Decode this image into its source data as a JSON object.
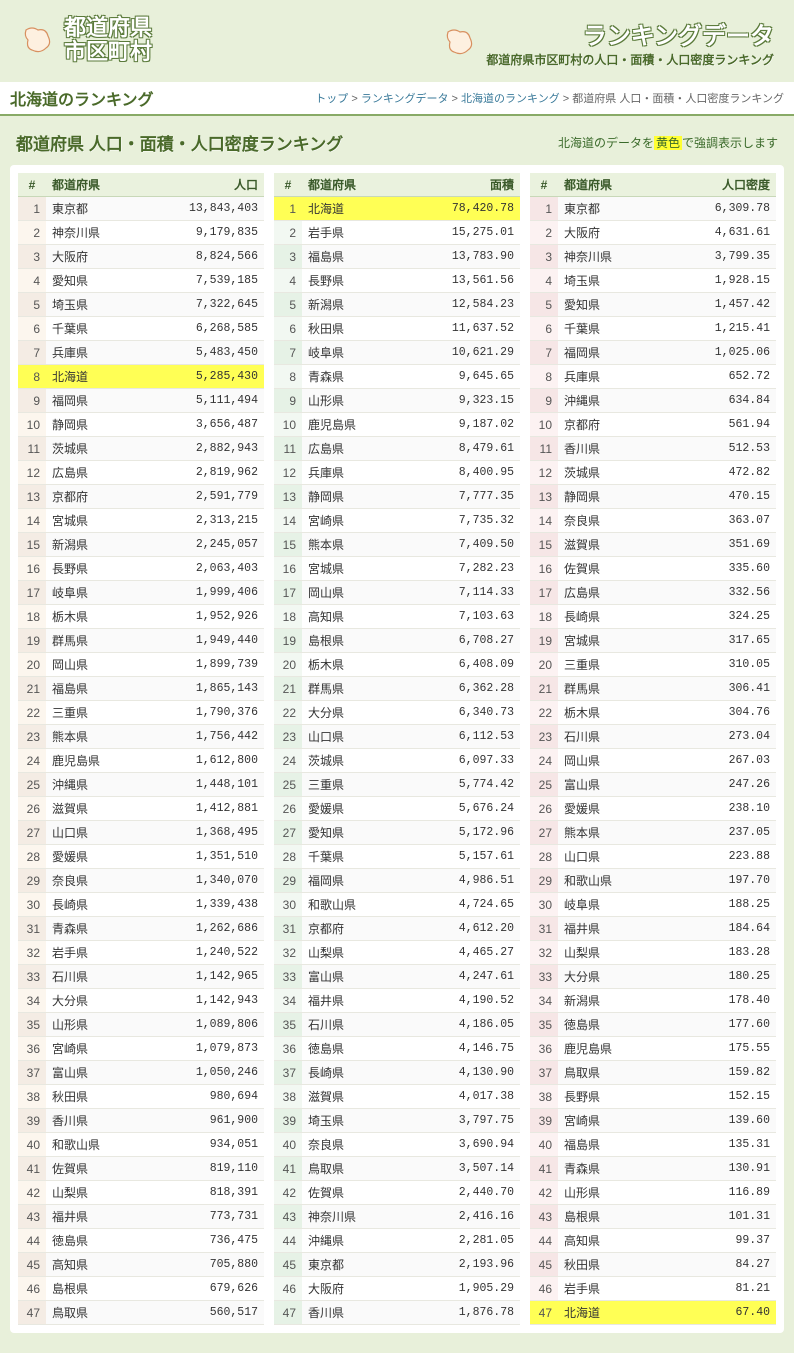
{
  "header": {
    "logo_line1": "都道府県",
    "logo_line2": "市区町村",
    "ranking_title": "ランキングデータ",
    "ranking_sub": "都道府県市区町村の人口・面積・人口密度ランキング"
  },
  "subhead": "北海道のランキング",
  "breadcrumb": {
    "items": [
      "トップ",
      "ランキングデータ",
      "北海道のランキング",
      "都道府県 人口・面積・人口密度ランキング"
    ],
    "sep": " > "
  },
  "page_title": "都道府県 人口・面積・人口密度ランキング",
  "highlight_note_pre": "北海道のデータを",
  "highlight_note_hl": "黄色",
  "highlight_note_post": "で強調表示します",
  "highlight_pref": "北海道",
  "colors": {
    "page_bg": "#e8f0da",
    "accent": "#4a6a2a",
    "highlight": "#ffff55"
  },
  "columns": [
    {
      "rank_h": "#",
      "pref_h": "都道府県",
      "val_h": "人口",
      "class": "c1",
      "rows": [
        {
          "r": 1,
          "p": "東京都",
          "v": "13,843,403"
        },
        {
          "r": 2,
          "p": "神奈川県",
          "v": "9,179,835"
        },
        {
          "r": 3,
          "p": "大阪府",
          "v": "8,824,566"
        },
        {
          "r": 4,
          "p": "愛知県",
          "v": "7,539,185"
        },
        {
          "r": 5,
          "p": "埼玉県",
          "v": "7,322,645"
        },
        {
          "r": 6,
          "p": "千葉県",
          "v": "6,268,585"
        },
        {
          "r": 7,
          "p": "兵庫県",
          "v": "5,483,450"
        },
        {
          "r": 8,
          "p": "北海道",
          "v": "5,285,430"
        },
        {
          "r": 9,
          "p": "福岡県",
          "v": "5,111,494"
        },
        {
          "r": 10,
          "p": "静岡県",
          "v": "3,656,487"
        },
        {
          "r": 11,
          "p": "茨城県",
          "v": "2,882,943"
        },
        {
          "r": 12,
          "p": "広島県",
          "v": "2,819,962"
        },
        {
          "r": 13,
          "p": "京都府",
          "v": "2,591,779"
        },
        {
          "r": 14,
          "p": "宮城県",
          "v": "2,313,215"
        },
        {
          "r": 15,
          "p": "新潟県",
          "v": "2,245,057"
        },
        {
          "r": 16,
          "p": "長野県",
          "v": "2,063,403"
        },
        {
          "r": 17,
          "p": "岐阜県",
          "v": "1,999,406"
        },
        {
          "r": 18,
          "p": "栃木県",
          "v": "1,952,926"
        },
        {
          "r": 19,
          "p": "群馬県",
          "v": "1,949,440"
        },
        {
          "r": 20,
          "p": "岡山県",
          "v": "1,899,739"
        },
        {
          "r": 21,
          "p": "福島県",
          "v": "1,865,143"
        },
        {
          "r": 22,
          "p": "三重県",
          "v": "1,790,376"
        },
        {
          "r": 23,
          "p": "熊本県",
          "v": "1,756,442"
        },
        {
          "r": 24,
          "p": "鹿児島県",
          "v": "1,612,800"
        },
        {
          "r": 25,
          "p": "沖縄県",
          "v": "1,448,101"
        },
        {
          "r": 26,
          "p": "滋賀県",
          "v": "1,412,881"
        },
        {
          "r": 27,
          "p": "山口県",
          "v": "1,368,495"
        },
        {
          "r": 28,
          "p": "愛媛県",
          "v": "1,351,510"
        },
        {
          "r": 29,
          "p": "奈良県",
          "v": "1,340,070"
        },
        {
          "r": 30,
          "p": "長崎県",
          "v": "1,339,438"
        },
        {
          "r": 31,
          "p": "青森県",
          "v": "1,262,686"
        },
        {
          "r": 32,
          "p": "岩手県",
          "v": "1,240,522"
        },
        {
          "r": 33,
          "p": "石川県",
          "v": "1,142,965"
        },
        {
          "r": 34,
          "p": "大分県",
          "v": "1,142,943"
        },
        {
          "r": 35,
          "p": "山形県",
          "v": "1,089,806"
        },
        {
          "r": 36,
          "p": "宮崎県",
          "v": "1,079,873"
        },
        {
          "r": 37,
          "p": "富山県",
          "v": "1,050,246"
        },
        {
          "r": 38,
          "p": "秋田県",
          "v": "980,694"
        },
        {
          "r": 39,
          "p": "香川県",
          "v": "961,900"
        },
        {
          "r": 40,
          "p": "和歌山県",
          "v": "934,051"
        },
        {
          "r": 41,
          "p": "佐賀県",
          "v": "819,110"
        },
        {
          "r": 42,
          "p": "山梨県",
          "v": "818,391"
        },
        {
          "r": 43,
          "p": "福井県",
          "v": "773,731"
        },
        {
          "r": 44,
          "p": "徳島県",
          "v": "736,475"
        },
        {
          "r": 45,
          "p": "高知県",
          "v": "705,880"
        },
        {
          "r": 46,
          "p": "島根県",
          "v": "679,626"
        },
        {
          "r": 47,
          "p": "鳥取県",
          "v": "560,517"
        }
      ]
    },
    {
      "rank_h": "#",
      "pref_h": "都道府県",
      "val_h": "面積",
      "class": "c2",
      "rows": [
        {
          "r": 1,
          "p": "北海道",
          "v": "78,420.78"
        },
        {
          "r": 2,
          "p": "岩手県",
          "v": "15,275.01"
        },
        {
          "r": 3,
          "p": "福島県",
          "v": "13,783.90"
        },
        {
          "r": 4,
          "p": "長野県",
          "v": "13,561.56"
        },
        {
          "r": 5,
          "p": "新潟県",
          "v": "12,584.23"
        },
        {
          "r": 6,
          "p": "秋田県",
          "v": "11,637.52"
        },
        {
          "r": 7,
          "p": "岐阜県",
          "v": "10,621.29"
        },
        {
          "r": 8,
          "p": "青森県",
          "v": "9,645.65"
        },
        {
          "r": 9,
          "p": "山形県",
          "v": "9,323.15"
        },
        {
          "r": 10,
          "p": "鹿児島県",
          "v": "9,187.02"
        },
        {
          "r": 11,
          "p": "広島県",
          "v": "8,479.61"
        },
        {
          "r": 12,
          "p": "兵庫県",
          "v": "8,400.95"
        },
        {
          "r": 13,
          "p": "静岡県",
          "v": "7,777.35"
        },
        {
          "r": 14,
          "p": "宮崎県",
          "v": "7,735.32"
        },
        {
          "r": 15,
          "p": "熊本県",
          "v": "7,409.50"
        },
        {
          "r": 16,
          "p": "宮城県",
          "v": "7,282.23"
        },
        {
          "r": 17,
          "p": "岡山県",
          "v": "7,114.33"
        },
        {
          "r": 18,
          "p": "高知県",
          "v": "7,103.63"
        },
        {
          "r": 19,
          "p": "島根県",
          "v": "6,708.27"
        },
        {
          "r": 20,
          "p": "栃木県",
          "v": "6,408.09"
        },
        {
          "r": 21,
          "p": "群馬県",
          "v": "6,362.28"
        },
        {
          "r": 22,
          "p": "大分県",
          "v": "6,340.73"
        },
        {
          "r": 23,
          "p": "山口県",
          "v": "6,112.53"
        },
        {
          "r": 24,
          "p": "茨城県",
          "v": "6,097.33"
        },
        {
          "r": 25,
          "p": "三重県",
          "v": "5,774.42"
        },
        {
          "r": 26,
          "p": "愛媛県",
          "v": "5,676.24"
        },
        {
          "r": 27,
          "p": "愛知県",
          "v": "5,172.96"
        },
        {
          "r": 28,
          "p": "千葉県",
          "v": "5,157.61"
        },
        {
          "r": 29,
          "p": "福岡県",
          "v": "4,986.51"
        },
        {
          "r": 30,
          "p": "和歌山県",
          "v": "4,724.65"
        },
        {
          "r": 31,
          "p": "京都府",
          "v": "4,612.20"
        },
        {
          "r": 32,
          "p": "山梨県",
          "v": "4,465.27"
        },
        {
          "r": 33,
          "p": "富山県",
          "v": "4,247.61"
        },
        {
          "r": 34,
          "p": "福井県",
          "v": "4,190.52"
        },
        {
          "r": 35,
          "p": "石川県",
          "v": "4,186.05"
        },
        {
          "r": 36,
          "p": "徳島県",
          "v": "4,146.75"
        },
        {
          "r": 37,
          "p": "長崎県",
          "v": "4,130.90"
        },
        {
          "r": 38,
          "p": "滋賀県",
          "v": "4,017.38"
        },
        {
          "r": 39,
          "p": "埼玉県",
          "v": "3,797.75"
        },
        {
          "r": 40,
          "p": "奈良県",
          "v": "3,690.94"
        },
        {
          "r": 41,
          "p": "鳥取県",
          "v": "3,507.14"
        },
        {
          "r": 42,
          "p": "佐賀県",
          "v": "2,440.70"
        },
        {
          "r": 43,
          "p": "神奈川県",
          "v": "2,416.16"
        },
        {
          "r": 44,
          "p": "沖縄県",
          "v": "2,281.05"
        },
        {
          "r": 45,
          "p": "東京都",
          "v": "2,193.96"
        },
        {
          "r": 46,
          "p": "大阪府",
          "v": "1,905.29"
        },
        {
          "r": 47,
          "p": "香川県",
          "v": "1,876.78"
        }
      ]
    },
    {
      "rank_h": "#",
      "pref_h": "都道府県",
      "val_h": "人口密度",
      "class": "c3",
      "rows": [
        {
          "r": 1,
          "p": "東京都",
          "v": "6,309.78"
        },
        {
          "r": 2,
          "p": "大阪府",
          "v": "4,631.61"
        },
        {
          "r": 3,
          "p": "神奈川県",
          "v": "3,799.35"
        },
        {
          "r": 4,
          "p": "埼玉県",
          "v": "1,928.15"
        },
        {
          "r": 5,
          "p": "愛知県",
          "v": "1,457.42"
        },
        {
          "r": 6,
          "p": "千葉県",
          "v": "1,215.41"
        },
        {
          "r": 7,
          "p": "福岡県",
          "v": "1,025.06"
        },
        {
          "r": 8,
          "p": "兵庫県",
          "v": "652.72"
        },
        {
          "r": 9,
          "p": "沖縄県",
          "v": "634.84"
        },
        {
          "r": 10,
          "p": "京都府",
          "v": "561.94"
        },
        {
          "r": 11,
          "p": "香川県",
          "v": "512.53"
        },
        {
          "r": 12,
          "p": "茨城県",
          "v": "472.82"
        },
        {
          "r": 13,
          "p": "静岡県",
          "v": "470.15"
        },
        {
          "r": 14,
          "p": "奈良県",
          "v": "363.07"
        },
        {
          "r": 15,
          "p": "滋賀県",
          "v": "351.69"
        },
        {
          "r": 16,
          "p": "佐賀県",
          "v": "335.60"
        },
        {
          "r": 17,
          "p": "広島県",
          "v": "332.56"
        },
        {
          "r": 18,
          "p": "長崎県",
          "v": "324.25"
        },
        {
          "r": 19,
          "p": "宮城県",
          "v": "317.65"
        },
        {
          "r": 20,
          "p": "三重県",
          "v": "310.05"
        },
        {
          "r": 21,
          "p": "群馬県",
          "v": "306.41"
        },
        {
          "r": 22,
          "p": "栃木県",
          "v": "304.76"
        },
        {
          "r": 23,
          "p": "石川県",
          "v": "273.04"
        },
        {
          "r": 24,
          "p": "岡山県",
          "v": "267.03"
        },
        {
          "r": 25,
          "p": "富山県",
          "v": "247.26"
        },
        {
          "r": 26,
          "p": "愛媛県",
          "v": "238.10"
        },
        {
          "r": 27,
          "p": "熊本県",
          "v": "237.05"
        },
        {
          "r": 28,
          "p": "山口県",
          "v": "223.88"
        },
        {
          "r": 29,
          "p": "和歌山県",
          "v": "197.70"
        },
        {
          "r": 30,
          "p": "岐阜県",
          "v": "188.25"
        },
        {
          "r": 31,
          "p": "福井県",
          "v": "184.64"
        },
        {
          "r": 32,
          "p": "山梨県",
          "v": "183.28"
        },
        {
          "r": 33,
          "p": "大分県",
          "v": "180.25"
        },
        {
          "r": 34,
          "p": "新潟県",
          "v": "178.40"
        },
        {
          "r": 35,
          "p": "徳島県",
          "v": "177.60"
        },
        {
          "r": 36,
          "p": "鹿児島県",
          "v": "175.55"
        },
        {
          "r": 37,
          "p": "鳥取県",
          "v": "159.82"
        },
        {
          "r": 38,
          "p": "長野県",
          "v": "152.15"
        },
        {
          "r": 39,
          "p": "宮崎県",
          "v": "139.60"
        },
        {
          "r": 40,
          "p": "福島県",
          "v": "135.31"
        },
        {
          "r": 41,
          "p": "青森県",
          "v": "130.91"
        },
        {
          "r": 42,
          "p": "山形県",
          "v": "116.89"
        },
        {
          "r": 43,
          "p": "島根県",
          "v": "101.31"
        },
        {
          "r": 44,
          "p": "高知県",
          "v": "99.37"
        },
        {
          "r": 45,
          "p": "秋田県",
          "v": "84.27"
        },
        {
          "r": 46,
          "p": "岩手県",
          "v": "81.21"
        },
        {
          "r": 47,
          "p": "北海道",
          "v": "67.40"
        }
      ]
    }
  ]
}
